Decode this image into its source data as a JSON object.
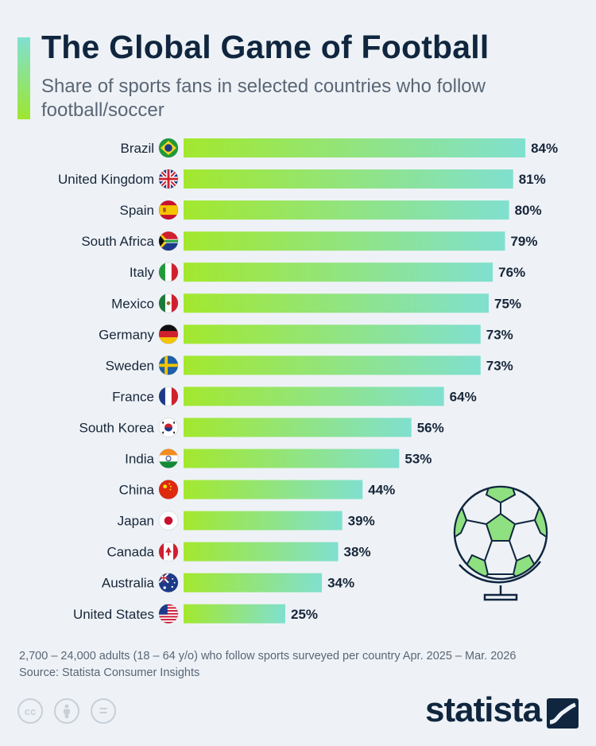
{
  "header": {
    "title": "The Global Game of Football",
    "subtitle": "Share of sports fans in selected countries who follow football/soccer"
  },
  "chart_data": {
    "type": "bar",
    "orientation": "horizontal",
    "categories": [
      "Brazil",
      "United Kingdom",
      "Spain",
      "South Africa",
      "Italy",
      "Mexico",
      "Germany",
      "Sweden",
      "France",
      "South Korea",
      "India",
      "China",
      "Japan",
      "Canada",
      "Australia",
      "United States"
    ],
    "values": [
      84,
      81,
      80,
      79,
      76,
      75,
      73,
      73,
      64,
      56,
      53,
      44,
      39,
      38,
      34,
      25
    ],
    "value_labels": [
      "84%",
      "81%",
      "80%",
      "79%",
      "76%",
      "75%",
      "73%",
      "73%",
      "64%",
      "56%",
      "53%",
      "44%",
      "39%",
      "38%",
      "34%",
      "25%"
    ],
    "flags": [
      "brazil-flag-icon",
      "uk-flag-icon",
      "spain-flag-icon",
      "south-africa-flag-icon",
      "italy-flag-icon",
      "mexico-flag-icon",
      "germany-flag-icon",
      "sweden-flag-icon",
      "france-flag-icon",
      "south-korea-flag-icon",
      "india-flag-icon",
      "china-flag-icon",
      "japan-flag-icon",
      "canada-flag-icon",
      "australia-flag-icon",
      "usa-flag-icon"
    ],
    "title": "The Global Game of Football",
    "xlabel": "",
    "ylabel": "",
    "xlim": [
      0,
      100
    ],
    "grid": false,
    "bar_gradient": [
      "#a3e82e",
      "#80e0cf"
    ]
  },
  "footer": {
    "note": "2,700 – 24,000 adults (18 – 64 y/o) who follow sports surveyed per country Apr. 2025 – Mar. 2026",
    "source": "Source: Statista Consumer Insights",
    "license_icons": [
      "cc-icon",
      "by-icon",
      "nd-icon"
    ],
    "license_labels": [
      "cc",
      "",
      "="
    ],
    "brand": "statista"
  },
  "colors": {
    "title": "#10263f",
    "background": "#eef2f6",
    "accent_top": "#7fe0d2",
    "accent_bottom": "#9ee62f"
  }
}
